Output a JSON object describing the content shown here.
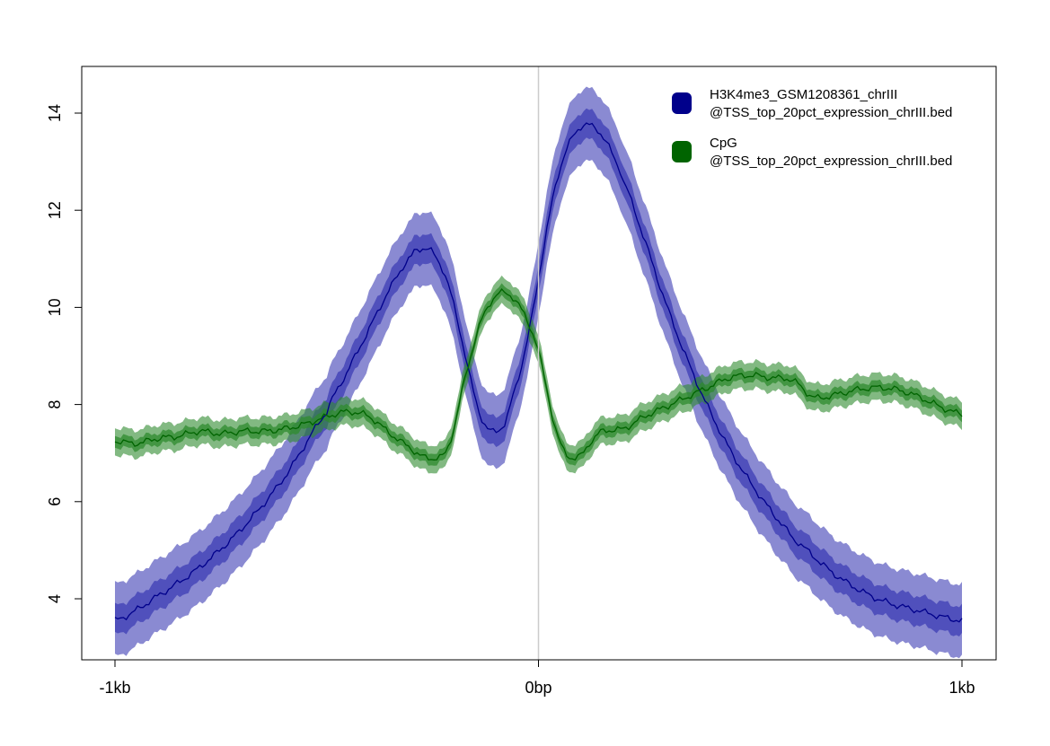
{
  "chart_data": {
    "type": "line",
    "title": "",
    "xlabel": "",
    "ylabel": "",
    "xlim": [
      -1000,
      1000
    ],
    "ylim": [
      2.8,
      15.0
    ],
    "x_ticks": [
      {
        "value": -1000,
        "label": "-1kb"
      },
      {
        "value": 0,
        "label": "0bp"
      },
      {
        "value": 1000,
        "label": "1kb"
      }
    ],
    "y_ticks": [
      {
        "value": 4,
        "label": "4"
      },
      {
        "value": 6,
        "label": "6"
      },
      {
        "value": 8,
        "label": "8"
      },
      {
        "value": 10,
        "label": "10"
      },
      {
        "value": 12,
        "label": "12"
      },
      {
        "value": 14,
        "label": "14"
      }
    ],
    "center_line_x": 0,
    "grid": false,
    "legend_position": "top-right",
    "series": [
      {
        "name": "H3K4me3_GSM1208361_chrIII @TSS_top_20pct_expression_chrIII.bed",
        "legend_lines": [
          "H3K4me3_GSM1208361_chrIII",
          "@TSS_top_20pct_expression_chrIII.bed"
        ],
        "color": "#00008b",
        "band_color": "#3c3cb4",
        "x": [
          -1000,
          -900,
          -800,
          -700,
          -600,
          -500,
          -450,
          -400,
          -350,
          -300,
          -280,
          -260,
          -240,
          -220,
          -200,
          -180,
          -160,
          -140,
          -120,
          -100,
          -80,
          -70,
          -60,
          -40,
          -20,
          0,
          20,
          40,
          60,
          80,
          100,
          120,
          140,
          160,
          180,
          200,
          250,
          300,
          350,
          400,
          450,
          500,
          550,
          600,
          700,
          800,
          900,
          1000
        ],
        "y": [
          3.55,
          4.05,
          4.65,
          5.45,
          6.5,
          7.85,
          8.7,
          9.55,
          10.4,
          11.05,
          11.2,
          11.2,
          11.0,
          10.65,
          10.05,
          9.3,
          8.5,
          7.85,
          7.5,
          7.45,
          7.6,
          7.85,
          8.2,
          8.8,
          9.6,
          10.6,
          11.6,
          12.5,
          13.1,
          13.5,
          13.72,
          13.75,
          13.65,
          13.4,
          13.05,
          12.6,
          11.4,
          10.1,
          8.95,
          7.95,
          7.1,
          6.4,
          5.8,
          5.25,
          4.5,
          4.0,
          3.75,
          3.55
        ],
        "inner_halfwidth": 0.3,
        "outer_halfwidth": 0.75
      },
      {
        "name": "CpG @TSS_top_20pct_expression_chrIII.bed",
        "legend_lines": [
          "CpG",
          "@TSS_top_20pct_expression_chrIII.bed"
        ],
        "color": "#006400",
        "band_color": "#2e8b2e",
        "x": [
          -1000,
          -950,
          -900,
          -850,
          -800,
          -750,
          -700,
          -650,
          -600,
          -550,
          -500,
          -450,
          -400,
          -350,
          -300,
          -280,
          -260,
          -240,
          -220,
          -200,
          -180,
          -160,
          -140,
          -120,
          -100,
          -80,
          -60,
          -40,
          -20,
          0,
          20,
          40,
          60,
          80,
          100,
          120,
          150,
          200,
          250,
          300,
          350,
          400,
          450,
          500,
          550,
          600,
          650,
          700,
          750,
          800,
          850,
          900,
          950,
          1000
        ],
        "y": [
          7.25,
          7.2,
          7.3,
          7.35,
          7.45,
          7.4,
          7.45,
          7.45,
          7.5,
          7.6,
          7.75,
          7.85,
          7.75,
          7.4,
          7.1,
          6.95,
          6.9,
          6.9,
          7.0,
          7.5,
          8.3,
          9.0,
          9.6,
          10.0,
          10.25,
          10.3,
          10.2,
          9.95,
          9.6,
          9.1,
          8.3,
          7.5,
          7.05,
          6.9,
          6.95,
          7.2,
          7.45,
          7.5,
          7.75,
          7.95,
          8.15,
          8.35,
          8.55,
          8.6,
          8.55,
          8.5,
          8.15,
          8.2,
          8.3,
          8.35,
          8.3,
          8.15,
          7.95,
          7.8
        ],
        "inner_halfwidth": 0.12,
        "outer_halfwidth": 0.28
      }
    ]
  }
}
